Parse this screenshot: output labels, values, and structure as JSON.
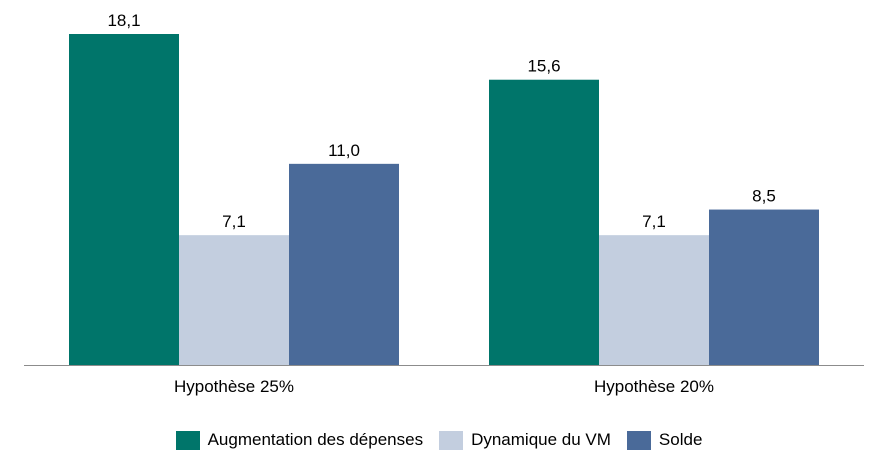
{
  "chart_data": {
    "type": "bar",
    "categories": [
      "Hypothèse 25%",
      "Hypothèse 20%"
    ],
    "series": [
      {
        "name": "Augmentation des dépenses",
        "values": [
          18.1,
          15.6
        ],
        "labels": [
          "18,1",
          "15,6"
        ],
        "color": "#00756A"
      },
      {
        "name": "Dynamique du VM",
        "values": [
          7.1,
          7.1
        ],
        "labels": [
          "7,1",
          "7,1"
        ],
        "color": "#C3CEDF"
      },
      {
        "name": "Solde",
        "values": [
          11.0,
          8.5
        ],
        "labels": [
          "11,0",
          "8,5"
        ],
        "color": "#4A6A99"
      }
    ],
    "ylim": [
      0,
      18.1
    ],
    "grid": false,
    "legend_position": "bottom"
  }
}
